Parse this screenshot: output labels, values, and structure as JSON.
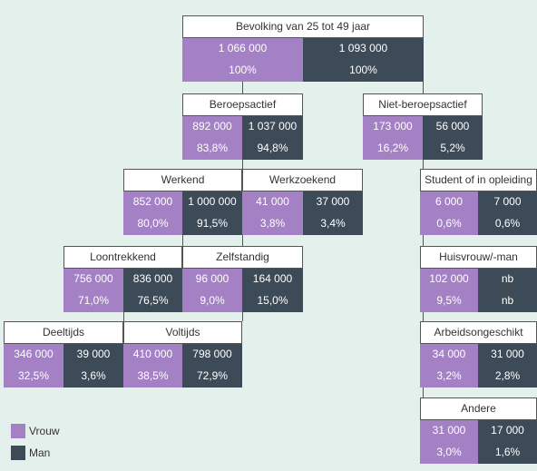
{
  "nodes": [
    {
      "label": "Bevolking van 25 tot 49 jaar",
      "vrouw": "1 066 000",
      "man": "1 093 000",
      "vrouw_pct": "100%",
      "man_pct": "100%"
    },
    {
      "label": "Beroepsactief",
      "vrouw": "892 000",
      "man": "1 037 000",
      "vrouw_pct": "83,8%",
      "man_pct": "94,8%"
    },
    {
      "label": "Niet-beroepsactief",
      "vrouw": "173 000",
      "man": "56 000",
      "vrouw_pct": "16,2%",
      "man_pct": "5,2%"
    },
    {
      "label": "Werkend",
      "vrouw": "852 000",
      "man": "1 000 000",
      "vrouw_pct": "80,0%",
      "man_pct": "91,5%"
    },
    {
      "label": "Werkzoekend",
      "vrouw": "41 000",
      "man": "37 000",
      "vrouw_pct": "3,8%",
      "man_pct": "3,4%"
    },
    {
      "label": "Student of in opleiding",
      "vrouw": "6 000",
      "man": "7 000",
      "vrouw_pct": "0,6%",
      "man_pct": "0,6%"
    },
    {
      "label": "Loontrekkend",
      "vrouw": "756 000",
      "man": "836 000",
      "vrouw_pct": "71,0%",
      "man_pct": "76,5%"
    },
    {
      "label": "Zelfstandig",
      "vrouw": "96 000",
      "man": "164 000",
      "vrouw_pct": "9,0%",
      "man_pct": "15,0%"
    },
    {
      "label": "Huisvrouw/-man",
      "vrouw": "102 000",
      "man": "nb",
      "vrouw_pct": "9,5%",
      "man_pct": "nb"
    },
    {
      "label": "Deeltijds",
      "vrouw": "346 000",
      "man": "39 000",
      "vrouw_pct": "32,5%",
      "man_pct": "3,6%"
    },
    {
      "label": "Voltijds",
      "vrouw": "410 000",
      "man": "798 000",
      "vrouw_pct": "38,5%",
      "man_pct": "72,9%"
    },
    {
      "label": "Arbeidsongeschikt",
      "vrouw": "34 000",
      "man": "31 000",
      "vrouw_pct": "3,2%",
      "man_pct": "2,8%"
    },
    {
      "label": "Andere",
      "vrouw": "31 000",
      "man": "17 000",
      "vrouw_pct": "3,0%",
      "man_pct": "1,6%"
    }
  ],
  "legend": [
    {
      "label": "Vrouw",
      "color": "#a481c4"
    },
    {
      "label": "Man",
      "color": "#3d4a57"
    }
  ]
}
